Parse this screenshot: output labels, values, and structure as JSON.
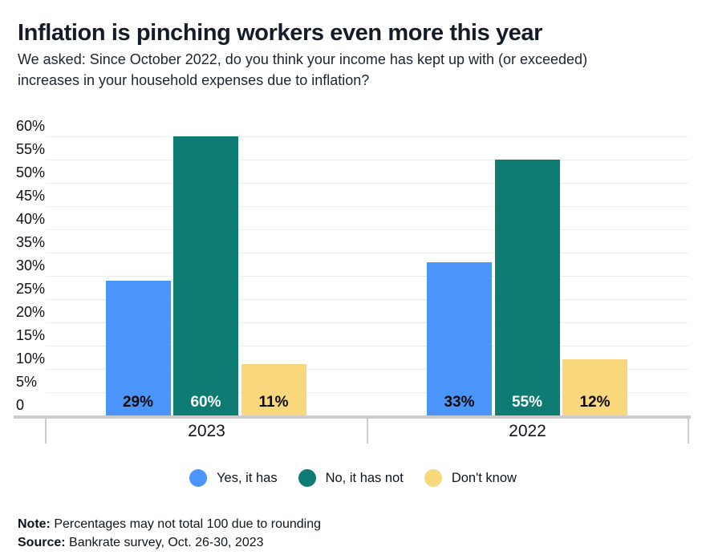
{
  "header": {
    "title": "Inflation is pinching workers even more this year",
    "subtitle_line1": "We asked: Since October 2022, do you think your income has kept up with (or exceeded)",
    "subtitle_line2": "increases in your household expenses due to inflation?"
  },
  "chart_data": {
    "type": "bar",
    "categories": [
      "2023",
      "2022"
    ],
    "series": [
      {
        "name": "Yes, it has",
        "color": "#4B94FA",
        "label_color": "#0b0b0b",
        "values": [
          29,
          33
        ]
      },
      {
        "name": "No, it has not",
        "color": "#0E7C73",
        "label_color": "#ffffff",
        "values": [
          60,
          55
        ]
      },
      {
        "name": "Don't know",
        "color": "#F9D77C",
        "label_color": "#0b0b0b",
        "values": [
          11,
          12
        ]
      }
    ],
    "value_suffix": "%",
    "data_labels": [
      [
        "29%",
        "33%"
      ],
      [
        "60%",
        "55%"
      ],
      [
        "11%",
        "12%"
      ]
    ],
    "y_ticks": [
      60,
      55,
      50,
      45,
      40,
      35,
      30,
      25,
      20,
      15,
      10,
      5,
      0
    ],
    "y_tick_labels": [
      "60%",
      "55%",
      "50%",
      "45%",
      "40%",
      "35%",
      "30%",
      "25%",
      "20%",
      "15%",
      "10%",
      "5%",
      "0"
    ],
    "ylim": [
      0,
      60
    ],
    "grid": true,
    "legend_position": "bottom",
    "title": "Inflation is pinching workers even more this year",
    "xlabel": "",
    "ylabel": ""
  },
  "footer": {
    "note_label": "Note:",
    "note_text": " Percentages may not total 100 due to rounding",
    "source_label": "Source:",
    "source_text": " Bankrate survey, Oct. 26-30, 2023"
  },
  "colors": {
    "yes_blue": "#4B94FA",
    "no_teal": "#0E7C73",
    "dont_know_yellow": "#F9D77C",
    "axis_line": "#cbcbcb",
    "gridline": "#ededed",
    "title_text": "#151c28"
  }
}
